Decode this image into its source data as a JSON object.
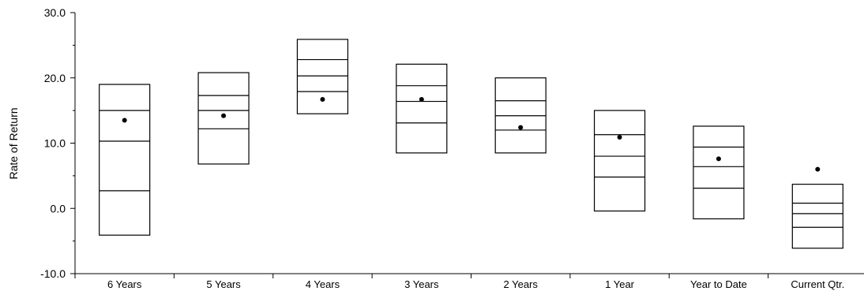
{
  "chart_data": {
    "type": "box",
    "ylabel": "Rate of Return",
    "ylim": [
      -10,
      30
    ],
    "yticks": [
      -10,
      0,
      10,
      20,
      30
    ],
    "ytick_labels": [
      "-10.0",
      "0.0",
      "10.0",
      "20.0",
      "30.0"
    ],
    "categories": [
      "6 Years",
      "5 Years",
      "4 Years",
      "3 Years",
      "2 Years",
      "1 Year",
      "Year to Date",
      "Current Qtr."
    ],
    "boxes": [
      {
        "category": "6 Years",
        "p95": 19.0,
        "p75": 15.0,
        "median": 10.3,
        "p25": 2.7,
        "p5": -4.1,
        "marker": 13.5
      },
      {
        "category": "5 Years",
        "p95": 20.8,
        "p75": 17.3,
        "median": 15.0,
        "p25": 12.2,
        "p5": 6.8,
        "marker": 14.2
      },
      {
        "category": "4 Years",
        "p95": 25.9,
        "p75": 22.8,
        "median": 20.3,
        "p25": 17.9,
        "p5": 14.5,
        "marker": 16.7
      },
      {
        "category": "3 Years",
        "p95": 22.1,
        "p75": 18.8,
        "median": 16.4,
        "p25": 13.1,
        "p5": 8.5,
        "marker": 16.7
      },
      {
        "category": "2 Years",
        "p95": 20.0,
        "p75": 16.5,
        "median": 14.2,
        "p25": 12.0,
        "p5": 8.5,
        "marker": 12.4
      },
      {
        "category": "1 Year",
        "p95": 15.0,
        "p75": 11.3,
        "median": 8.0,
        "p25": 4.8,
        "p5": -0.4,
        "marker": 10.9
      },
      {
        "category": "Year to Date",
        "p95": 12.6,
        "p75": 9.4,
        "median": 6.4,
        "p25": 3.1,
        "p5": -1.6,
        "marker": 7.6
      },
      {
        "category": "Current Qtr.",
        "p95": 3.7,
        "p75": 0.8,
        "median": -0.8,
        "p25": -2.9,
        "p5": -6.1,
        "marker": 6.0
      }
    ],
    "grid": false,
    "legend": "none"
  }
}
